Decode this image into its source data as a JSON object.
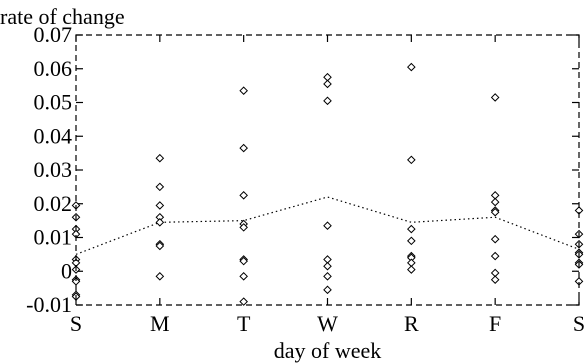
{
  "chart_data": {
    "type": "scatter",
    "xlabel": "day of week",
    "ylabel": "rate of change",
    "categories": [
      "S",
      "M",
      "T",
      "W",
      "R",
      "F",
      "S"
    ],
    "ylim": [
      -0.01,
      0.07
    ],
    "yticks": [
      -0.01,
      0,
      0.01,
      0.02,
      0.03,
      0.04,
      0.05,
      0.06,
      0.07
    ],
    "ytick_labels": [
      "-0.01",
      "0",
      "0.01",
      "0.02",
      "0.03",
      "0.04",
      "0.05",
      "0.06",
      "0.07"
    ],
    "grid": false,
    "series": [
      {
        "values": [
          [
            0.0195,
            0.016,
            0.0125,
            0.011,
            0.0035,
            0.0025,
            0.0005,
            -0.0025,
            -0.003,
            -0.007,
            -0.0075
          ],
          [
            0.0335,
            0.025,
            0.0195,
            0.016,
            0.0145,
            0.008,
            0.0075,
            -0.0015
          ],
          [
            0.0535,
            0.0365,
            0.0225,
            0.014,
            0.013,
            0.0035,
            0.003,
            -0.0015,
            -0.009
          ],
          [
            0.0575,
            0.0555,
            0.0505,
            0.0135,
            0.0035,
            0.0015,
            -0.0015,
            -0.0055
          ],
          [
            0.0605,
            0.033,
            0.0125,
            0.009,
            0.0045,
            0.004,
            0.0025,
            0.0005
          ],
          [
            0.0515,
            0.0225,
            0.0205,
            0.018,
            0.0175,
            0.0095,
            0.0045,
            -0.0005,
            -0.0025
          ],
          [
            0.018,
            0.011,
            0.008,
            0.0055,
            0.005,
            0.0025,
            0.002,
            -0.003
          ]
        ]
      },
      {
        "values": [
          0.005,
          0.0145,
          0.015,
          0.022,
          0.0145,
          0.016,
          0.0065
        ]
      }
    ]
  }
}
